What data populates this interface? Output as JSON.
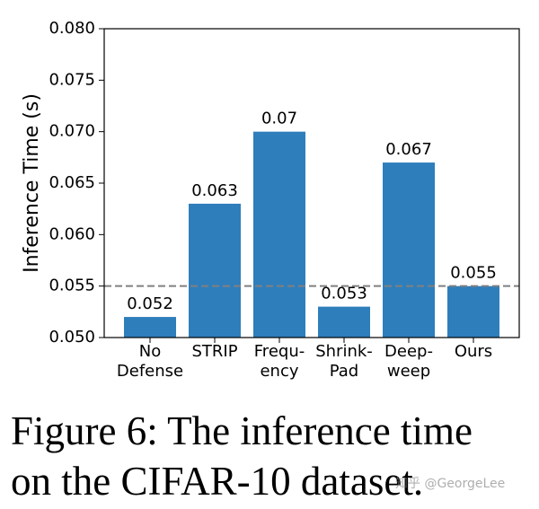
{
  "chart_data": {
    "type": "bar",
    "y_label": "Inference Time (s)",
    "categories": [
      "No\nDefense",
      "STRIP",
      "Frequ-\nency",
      "Shrink-\nPad",
      "Deep-\nweep",
      "Ours"
    ],
    "values": [
      0.052,
      0.063,
      0.07,
      0.053,
      0.067,
      0.055
    ],
    "color": "#2e7ebc",
    "ylim": [
      0.05,
      0.08
    ],
    "yticks": [
      {
        "value": 0.05,
        "label": "0.050"
      },
      0.055,
      {
        "value": 0.06,
        "label": "0.060"
      },
      0.065,
      {
        "value": 0.07,
        "label": "0.070"
      },
      0.075,
      {
        "value": 0.08,
        "label": "0.080"
      }
    ],
    "hline": 0.055,
    "hline_color": "#808080"
  },
  "caption": "Figure 6: The inference time\non the CIFAR-10 dataset.",
  "watermark": "知乎 @GeorgeLee"
}
